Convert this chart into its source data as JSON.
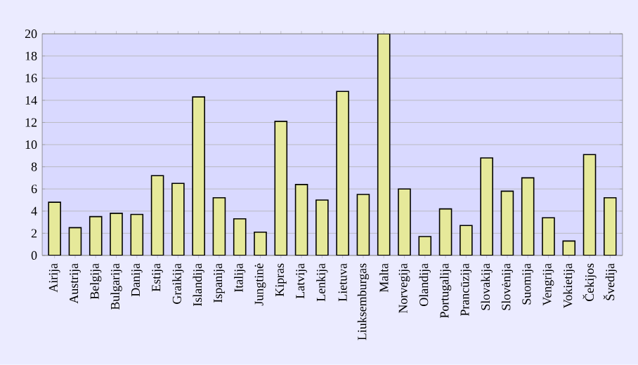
{
  "chart_data": {
    "type": "bar",
    "categories": [
      "Airija",
      "Austrija",
      "Belgija",
      "Bulgarija",
      "Danija",
      "Estija",
      "Graikija",
      "Islandija",
      "Ispanija",
      "Italija",
      "Jungtinė",
      "Kipras",
      "Latvija",
      "Lenkija",
      "Lietuva",
      "Liuksemburgas",
      "Malta",
      "Norvegija",
      "Olandija",
      "Portugalija",
      "Prancūzija",
      "Slovakija",
      "Slovėnija",
      "Suomija",
      "Vengrija",
      "Vokietija",
      "Čekijos",
      "Švedija"
    ],
    "values": [
      4.8,
      2.5,
      3.5,
      3.8,
      3.7,
      7.2,
      6.5,
      14.3,
      5.2,
      3.3,
      2.1,
      12.1,
      6.4,
      5.0,
      14.8,
      5.5,
      20,
      6.0,
      1.7,
      4.2,
      2.7,
      8.8,
      5.8,
      7.0,
      3.4,
      1.3,
      9.1,
      5.2
    ],
    "color": "#e6e99a",
    "ylim": [
      0,
      20
    ],
    "yticks": [
      0,
      2,
      4,
      6,
      8,
      10,
      12,
      14,
      16,
      18,
      20
    ],
    "grid": "y"
  }
}
